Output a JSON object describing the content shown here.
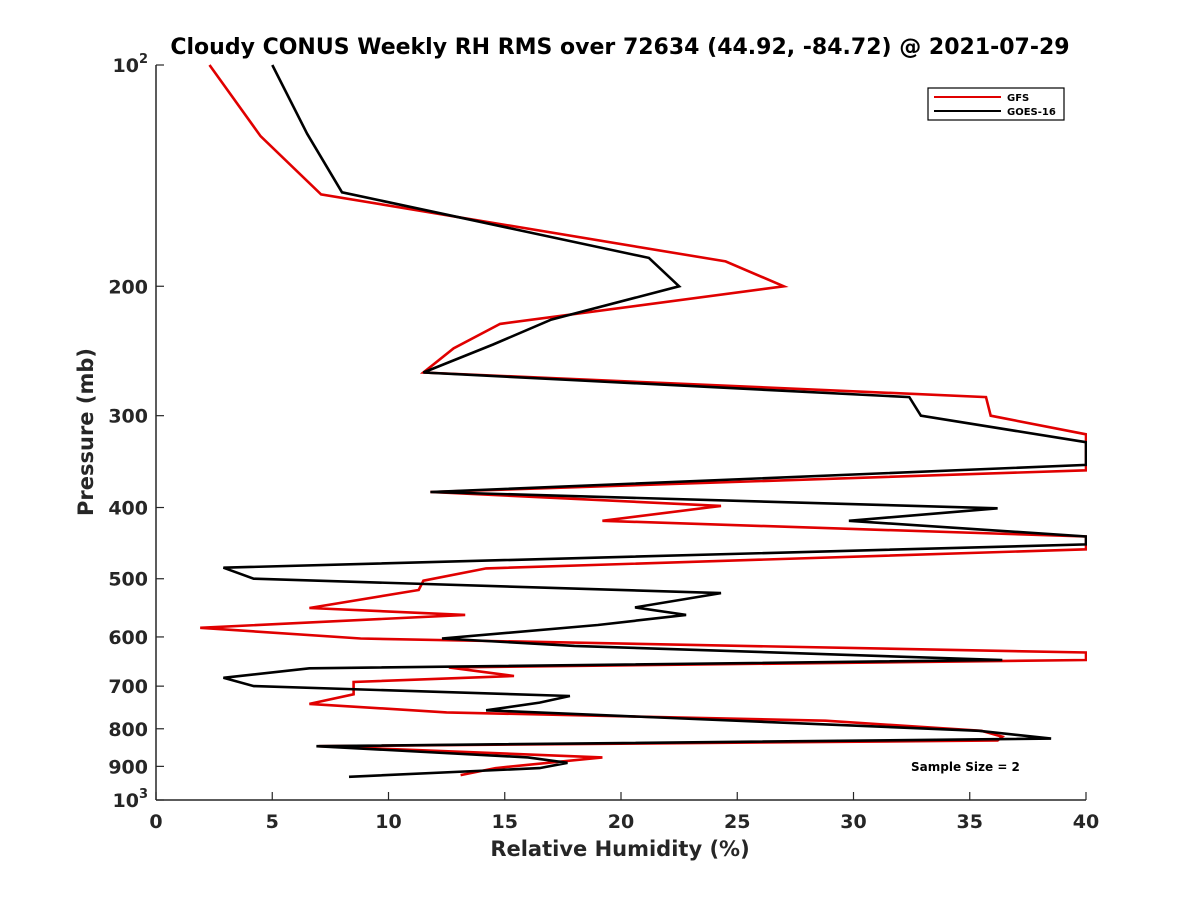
{
  "chart_data": {
    "type": "line",
    "title": "Cloudy CONUS Weekly RH RMS over 72634 (44.92, -84.72) @ 2021-07-29",
    "xlabel": "Relative Humidity (%)",
    "ylabel": "Pressure (mb)",
    "xlim": [
      0,
      40
    ],
    "ylim": [
      100,
      1000
    ],
    "y_scale": "log",
    "y_reversed": true,
    "grid": false,
    "legend_position": "top-right",
    "annotation": "Sample Size = 2",
    "x_ticks": [
      "0",
      "5",
      "10",
      "15",
      "20",
      "25",
      "30",
      "35",
      "40"
    ],
    "y_ticks": [
      {
        "value": 100,
        "base": "10",
        "exp": "2"
      },
      {
        "value": 200,
        "base": "200",
        "exp": ""
      },
      {
        "value": 300,
        "base": "300",
        "exp": ""
      },
      {
        "value": 400,
        "base": "400",
        "exp": ""
      },
      {
        "value": 500,
        "base": "500",
        "exp": ""
      },
      {
        "value": 600,
        "base": "600",
        "exp": ""
      },
      {
        "value": 700,
        "base": "700",
        "exp": ""
      },
      {
        "value": 800,
        "base": "800",
        "exp": ""
      },
      {
        "value": 900,
        "base": "900",
        "exp": ""
      },
      {
        "value": 1000,
        "base": "10",
        "exp": "3"
      }
    ],
    "series": [
      {
        "name": "GFS",
        "color": "#e00000",
        "points": [
          [
            2.3,
            100
          ],
          [
            4.5,
            125
          ],
          [
            7.1,
            150
          ],
          [
            24.5,
            185
          ],
          [
            27.0,
            200
          ],
          [
            14.8,
            225
          ],
          [
            12.8,
            243
          ],
          [
            11.5,
            262
          ],
          [
            35.7,
            283
          ],
          [
            35.9,
            300
          ],
          [
            40,
            318
          ],
          [
            40,
            356
          ],
          [
            11.8,
            381
          ],
          [
            24.3,
            398
          ],
          [
            19.2,
            417
          ],
          [
            40,
            438
          ],
          [
            40,
            456
          ],
          [
            14.2,
            484
          ],
          [
            11.5,
            503
          ],
          [
            11.3,
            518
          ],
          [
            6.6,
            548
          ],
          [
            13.3,
            560
          ],
          [
            1.9,
            583
          ],
          [
            8.8,
            603
          ],
          [
            40,
            630
          ],
          [
            40,
            645
          ],
          [
            12.6,
            660
          ],
          [
            15.4,
            678
          ],
          [
            8.5,
            691
          ],
          [
            8.5,
            718
          ],
          [
            6.6,
            740
          ],
          [
            12.5,
            760
          ],
          [
            28.8,
            780
          ],
          [
            35.5,
            805
          ],
          [
            36.4,
            820
          ],
          [
            36.2,
            830
          ],
          [
            7.0,
            845
          ],
          [
            19.2,
            875
          ],
          [
            14.6,
            905
          ],
          [
            13.1,
            925
          ]
        ]
      },
      {
        "name": "GOES-16",
        "color": "#000000",
        "points": [
          [
            5.0,
            100
          ],
          [
            6.5,
            124
          ],
          [
            8.0,
            149
          ],
          [
            21.2,
            183
          ],
          [
            22.5,
            200
          ],
          [
            17.0,
            222
          ],
          [
            14.5,
            240
          ],
          [
            11.5,
            262
          ],
          [
            32.4,
            283
          ],
          [
            32.9,
            300
          ],
          [
            40,
            326
          ],
          [
            40,
            350
          ],
          [
            11.8,
            381
          ],
          [
            36.2,
            401
          ],
          [
            29.8,
            417
          ],
          [
            40,
            438
          ],
          [
            40,
            449
          ],
          [
            2.9,
            483
          ],
          [
            4.2,
            500
          ],
          [
            24.3,
            523
          ],
          [
            20.6,
            547
          ],
          [
            22.8,
            560
          ],
          [
            19.0,
            578
          ],
          [
            12.3,
            603
          ],
          [
            18.0,
            617
          ],
          [
            36.4,
            645
          ],
          [
            6.6,
            662
          ],
          [
            2.9,
            682
          ],
          [
            4.2,
            700
          ],
          [
            17.8,
            722
          ],
          [
            16.5,
            737
          ],
          [
            14.2,
            755
          ],
          [
            35.4,
            805
          ],
          [
            38.5,
            825
          ],
          [
            6.9,
            845
          ],
          [
            16.0,
            875
          ],
          [
            17.7,
            890
          ],
          [
            16.5,
            905
          ],
          [
            8.3,
            930
          ]
        ]
      }
    ]
  }
}
